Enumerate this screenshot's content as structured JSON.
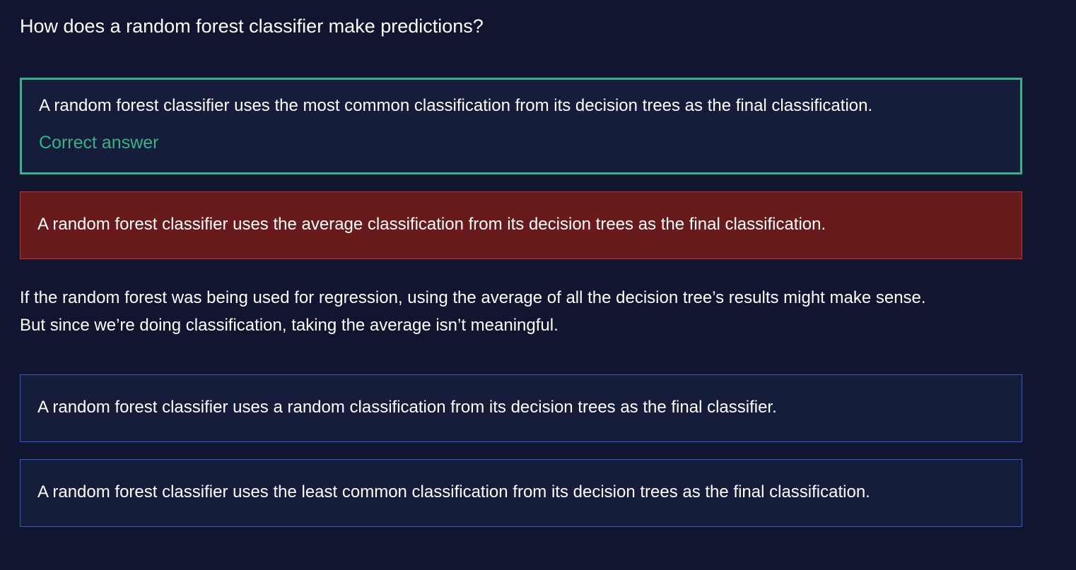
{
  "question": "How does a random forest classifier make predictions?",
  "options": [
    {
      "text": "A random forest classifier uses the most common classification from its decision trees as the final classification.",
      "status": "correct",
      "status_label": "Correct answer"
    },
    {
      "text": "A random forest classifier uses the average classification from its decision trees as the final classification.",
      "status": "selected-wrong",
      "feedback": "If the random forest was being used for regression, using the average of all the decision tree’s results might make sense. But since we’re doing classification, taking the average isn’t meaningful."
    },
    {
      "text": "A random forest classifier uses a random classification from its decision trees as the final classifier.",
      "status": "unselected"
    },
    {
      "text": "A random forest classifier uses the least common classification from its decision trees as the final classification.",
      "status": "unselected"
    }
  ],
  "colors": {
    "background": "#10162f",
    "option_background": "#151d3b",
    "correct_accent": "#3ab08a",
    "wrong_background": "#691b1b",
    "wrong_border": "#c03333",
    "option_border": "#3a57c4"
  }
}
